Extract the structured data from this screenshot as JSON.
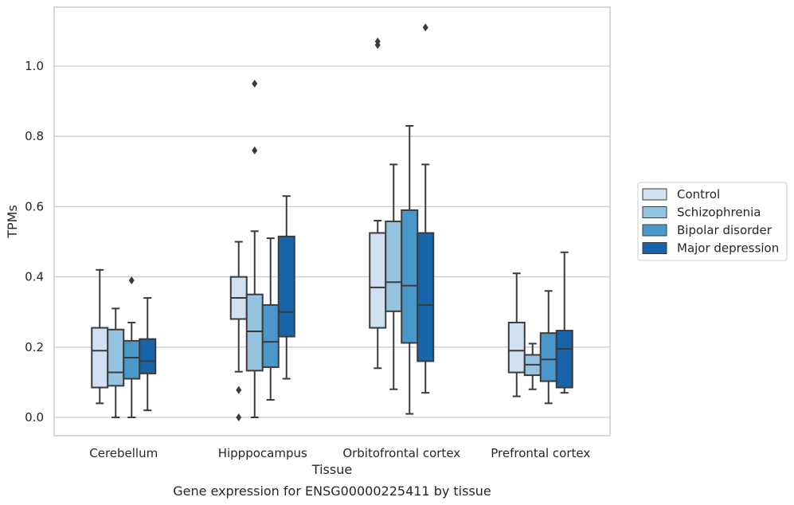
{
  "chart_data": {
    "type": "boxplot",
    "title": "",
    "caption": "Gene expression for ENSG00000225411 by tissue",
    "xlabel": "Tissue",
    "ylabel": "TPMs",
    "ylim": [
      -0.055,
      1.17
    ],
    "yticks": [
      0.0,
      0.2,
      0.4,
      0.6,
      0.8,
      1.0
    ],
    "ytick_labels": [
      "0.0",
      "0.2",
      "0.4",
      "0.6",
      "0.8",
      "1.0"
    ],
    "grid": "horizontal",
    "legend_position": "right",
    "categories": [
      "Cerebellum",
      "Hipppocampus",
      "Orbitofrontal cortex",
      "Prefrontal cortex"
    ],
    "series": [
      {
        "name": "Control",
        "color": "#d0e1f2",
        "boxes": [
          {
            "whisker_low": 0.04,
            "q1": 0.085,
            "median": 0.19,
            "q3": 0.255,
            "whisker_high": 0.42,
            "outliers": []
          },
          {
            "whisker_low": 0.13,
            "q1": 0.28,
            "median": 0.34,
            "q3": 0.4,
            "whisker_high": 0.5,
            "outliers": [
              0.078,
              0.0
            ]
          },
          {
            "whisker_low": 0.14,
            "q1": 0.255,
            "median": 0.37,
            "q3": 0.525,
            "whisker_high": 0.56,
            "outliers": [
              1.07,
              1.06
            ]
          },
          {
            "whisker_low": 0.06,
            "q1": 0.128,
            "median": 0.19,
            "q3": 0.27,
            "whisker_high": 0.41,
            "outliers": []
          }
        ]
      },
      {
        "name": "Schizophrenia",
        "color": "#94c4df",
        "boxes": [
          {
            "whisker_low": 0.0,
            "q1": 0.09,
            "median": 0.128,
            "q3": 0.25,
            "whisker_high": 0.31,
            "outliers": []
          },
          {
            "whisker_low": 0.0,
            "q1": 0.133,
            "median": 0.245,
            "q3": 0.35,
            "whisker_high": 0.53,
            "outliers": [
              0.95,
              0.76
            ]
          },
          {
            "whisker_low": 0.08,
            "q1": 0.302,
            "median": 0.385,
            "q3": 0.558,
            "whisker_high": 0.72,
            "outliers": []
          },
          {
            "whisker_low": 0.08,
            "q1": 0.12,
            "median": 0.15,
            "q3": 0.178,
            "whisker_high": 0.21,
            "outliers": []
          }
        ]
      },
      {
        "name": "Bipolar disorder",
        "color": "#4a98c9",
        "boxes": [
          {
            "whisker_low": 0.0,
            "q1": 0.11,
            "median": 0.17,
            "q3": 0.218,
            "whisker_high": 0.27,
            "outliers": [
              0.39
            ]
          },
          {
            "whisker_low": 0.05,
            "q1": 0.143,
            "median": 0.215,
            "q3": 0.32,
            "whisker_high": 0.51,
            "outliers": []
          },
          {
            "whisker_low": 0.01,
            "q1": 0.212,
            "median": 0.375,
            "q3": 0.59,
            "whisker_high": 0.83,
            "outliers": []
          },
          {
            "whisker_low": 0.04,
            "q1": 0.103,
            "median": 0.165,
            "q3": 0.24,
            "whisker_high": 0.36,
            "outliers": []
          }
        ]
      },
      {
        "name": "Major depression",
        "color": "#1764ab",
        "boxes": [
          {
            "whisker_low": 0.02,
            "q1": 0.125,
            "median": 0.16,
            "q3": 0.223,
            "whisker_high": 0.34,
            "outliers": []
          },
          {
            "whisker_low": 0.11,
            "q1": 0.23,
            "median": 0.3,
            "q3": 0.515,
            "whisker_high": 0.63,
            "outliers": []
          },
          {
            "whisker_low": 0.07,
            "q1": 0.16,
            "median": 0.32,
            "q3": 0.525,
            "whisker_high": 0.72,
            "outliers": [
              1.11
            ]
          },
          {
            "whisker_low": 0.07,
            "q1": 0.085,
            "median": 0.195,
            "q3": 0.247,
            "whisker_high": 0.47,
            "outliers": []
          }
        ]
      }
    ]
  }
}
